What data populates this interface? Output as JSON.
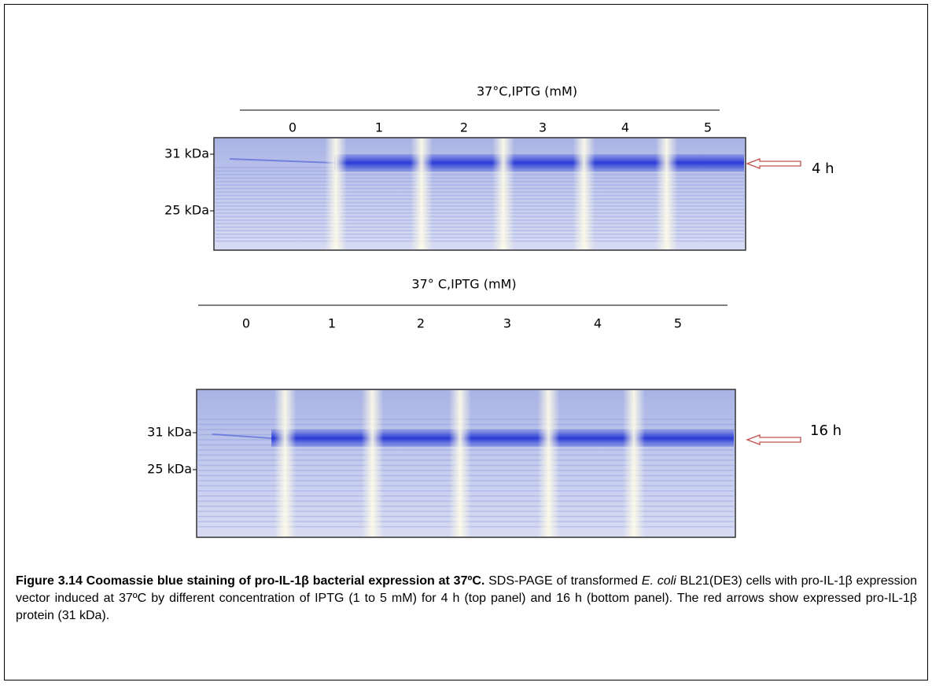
{
  "panels": [
    {
      "header": "37°C,IPTG (mM)",
      "lanes": [
        "0",
        "1",
        "2",
        "3",
        "4",
        "5"
      ],
      "markers": [
        "31 kDa",
        "25 kDa"
      ],
      "time": "4 h"
    },
    {
      "header": "37° C,IPTG (mM)",
      "lanes": [
        "0",
        "1",
        "2",
        "3",
        "4",
        "5"
      ],
      "markers": [
        "31 kDa",
        "25 kDa"
      ],
      "time": "16 h"
    }
  ],
  "caption": {
    "title": "Figure 3.14 Coomassie blue staining of pro-IL-1β bacterial expression at 37ºC.",
    "text_before": " SDS-PAGE of transformed ",
    "species": "E. coli",
    "text_after": " BL21(DE3) cells with pro-IL-1β expression vector induced at 37ºC by different concentration of IPTG (1 to 5 mM) for 4 h (top panel) and 16 h (bottom panel). The red arrows show expressed pro-IL-1β protein (31 kDa)."
  }
}
